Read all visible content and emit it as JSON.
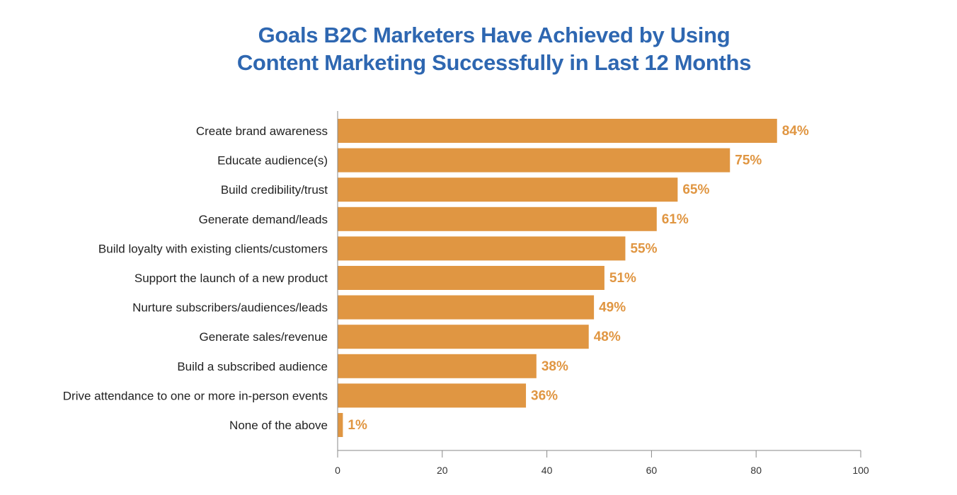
{
  "colors": {
    "title": "#2e67b1",
    "bar": "#e09642",
    "value_label": "#e09642",
    "axis": "#888888"
  },
  "chart_data": {
    "type": "bar",
    "orientation": "horizontal",
    "title_lines": [
      "Goals B2C Marketers Have Achieved by Using",
      "Content Marketing Successfully in Last 12 Months"
    ],
    "categories": [
      "Create brand awareness",
      "Educate audience(s)",
      "Build credibility/trust",
      "Generate demand/leads",
      "Build loyalty with existing clients/customers",
      "Support the launch of a new product",
      "Nurture subscribers/audiences/leads",
      "Generate sales/revenue",
      "Build a subscribed audience",
      "Drive attendance to one or more in-person events",
      "None of the above"
    ],
    "values": [
      84,
      75,
      65,
      61,
      55,
      51,
      49,
      48,
      38,
      36,
      1
    ],
    "value_labels": [
      "84%",
      "75%",
      "65%",
      "61%",
      "55%",
      "51%",
      "49%",
      "48%",
      "38%",
      "36%",
      "1%"
    ],
    "xlim": [
      0,
      100
    ],
    "xticks": [
      "0",
      "20",
      "40",
      "60",
      "80",
      "100"
    ],
    "grid": false
  }
}
